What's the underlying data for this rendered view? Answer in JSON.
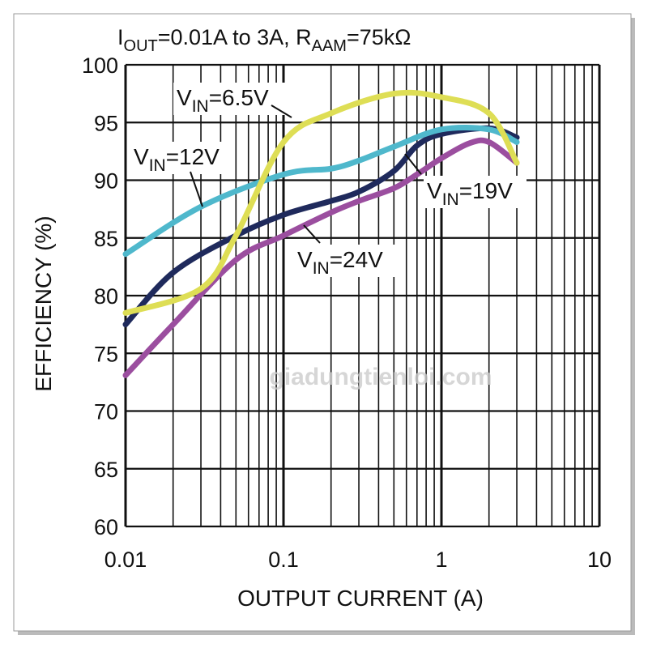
{
  "chart_data": {
    "type": "line",
    "title": {
      "prefix": "I",
      "prefix_sub": "OUT",
      "mid": "=0.01A to 3A, R",
      "mid_sub": "AAM",
      "suffix": "=75kΩ"
    },
    "xlabel": "OUTPUT CURRENT (A)",
    "ylabel": "EFFICIENCY (%)",
    "xscale": "log",
    "xlim": [
      0.01,
      10
    ],
    "ylim": [
      60,
      100
    ],
    "xticks": [
      {
        "v": 0.01,
        "label": "0.01"
      },
      {
        "v": 0.1,
        "label": "0.1"
      },
      {
        "v": 1,
        "label": "1"
      },
      {
        "v": 10,
        "label": "10"
      }
    ],
    "yticks": [
      {
        "v": 60,
        "label": "60"
      },
      {
        "v": 65,
        "label": "65"
      },
      {
        "v": 70,
        "label": "70"
      },
      {
        "v": 75,
        "label": "75"
      },
      {
        "v": 80,
        "label": "80"
      },
      {
        "v": 85,
        "label": "85"
      },
      {
        "v": 90,
        "label": "90"
      },
      {
        "v": 95,
        "label": "95"
      },
      {
        "v": 100,
        "label": "100"
      }
    ],
    "grid": true,
    "series": [
      {
        "name": "VIN=24V",
        "label_main": "V",
        "label_sub": "IN",
        "label_rest": "=24V",
        "color": "#9b4e9f",
        "x": [
          0.01,
          0.02,
          0.05,
          0.1,
          0.2,
          0.3,
          0.5,
          0.7,
          1,
          1.5,
          2,
          3
        ],
        "y": [
          73.1,
          77.5,
          83.1,
          85.2,
          87.2,
          88.2,
          89.3,
          90.5,
          91.9,
          93.2,
          93.3,
          91.5
        ]
      },
      {
        "name": "VIN=19V",
        "label_main": "V",
        "label_sub": "IN",
        "label_rest": "=19V",
        "color": "#1f2a5c",
        "x": [
          0.01,
          0.02,
          0.05,
          0.1,
          0.2,
          0.3,
          0.5,
          0.7,
          1,
          2,
          3
        ],
        "y": [
          77.5,
          82.0,
          85.2,
          87.0,
          88.2,
          89.0,
          90.8,
          93.0,
          94.0,
          94.5,
          93.7
        ]
      },
      {
        "name": "VIN=12V",
        "label_main": "V",
        "label_sub": "IN",
        "label_rest": "=12V",
        "color": "#4fb8cc",
        "x": [
          0.01,
          0.03,
          0.1,
          0.2,
          0.3,
          0.5,
          1,
          2,
          3
        ],
        "y": [
          83.6,
          87.7,
          90.5,
          91.0,
          91.7,
          92.9,
          94.4,
          94.4,
          93.3
        ]
      },
      {
        "name": "VIN=6.5V",
        "label_main": "V",
        "label_sub": "IN",
        "label_rest": "=6.5V",
        "color": "#dede55",
        "x": [
          0.01,
          0.03,
          0.05,
          0.1,
          0.2,
          0.5,
          1,
          2,
          3
        ],
        "y": [
          78.5,
          80.6,
          85.2,
          93.3,
          95.8,
          97.5,
          97.2,
          95.8,
          91.5
        ]
      }
    ]
  },
  "watermark": "giadungtienloi.com"
}
